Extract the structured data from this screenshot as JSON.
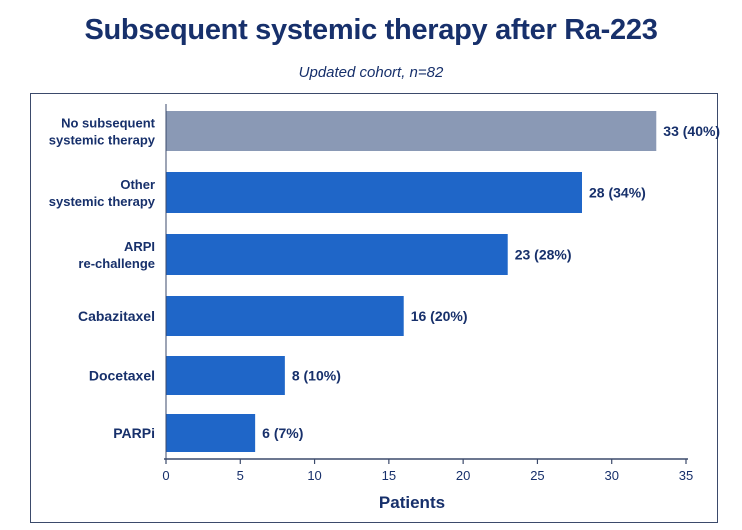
{
  "chart_data": {
    "type": "bar",
    "orientation": "horizontal",
    "title": "Subsequent systemic therapy after Ra-223",
    "subtitle": "Updated cohort, n=82",
    "xlabel": "Patients",
    "xlim": [
      0,
      35
    ],
    "xticks": [
      0,
      5,
      10,
      15,
      20,
      25,
      30,
      35
    ],
    "grid": false,
    "categories": [
      [
        "No subsequent",
        "systemic therapy"
      ],
      [
        "Other",
        "systemic therapy"
      ],
      [
        "ARPI",
        "re-challenge"
      ],
      [
        "Cabazitaxel"
      ],
      [
        "Docetaxel"
      ],
      [
        "PARPi"
      ]
    ],
    "values": [
      33,
      28,
      23,
      16,
      8,
      6
    ],
    "data_labels": [
      "33 (40%)",
      "28 (34%)",
      "23 (28%)",
      "16 (20%)",
      "8 (10%)",
      "6 (7%)"
    ],
    "colors": [
      "#8a99b5",
      "#1f66c8",
      "#1f66c8",
      "#1f66c8",
      "#1f66c8",
      "#1f66c8"
    ],
    "axis_color": "#3b4a6b",
    "text_color": "#17306b"
  }
}
